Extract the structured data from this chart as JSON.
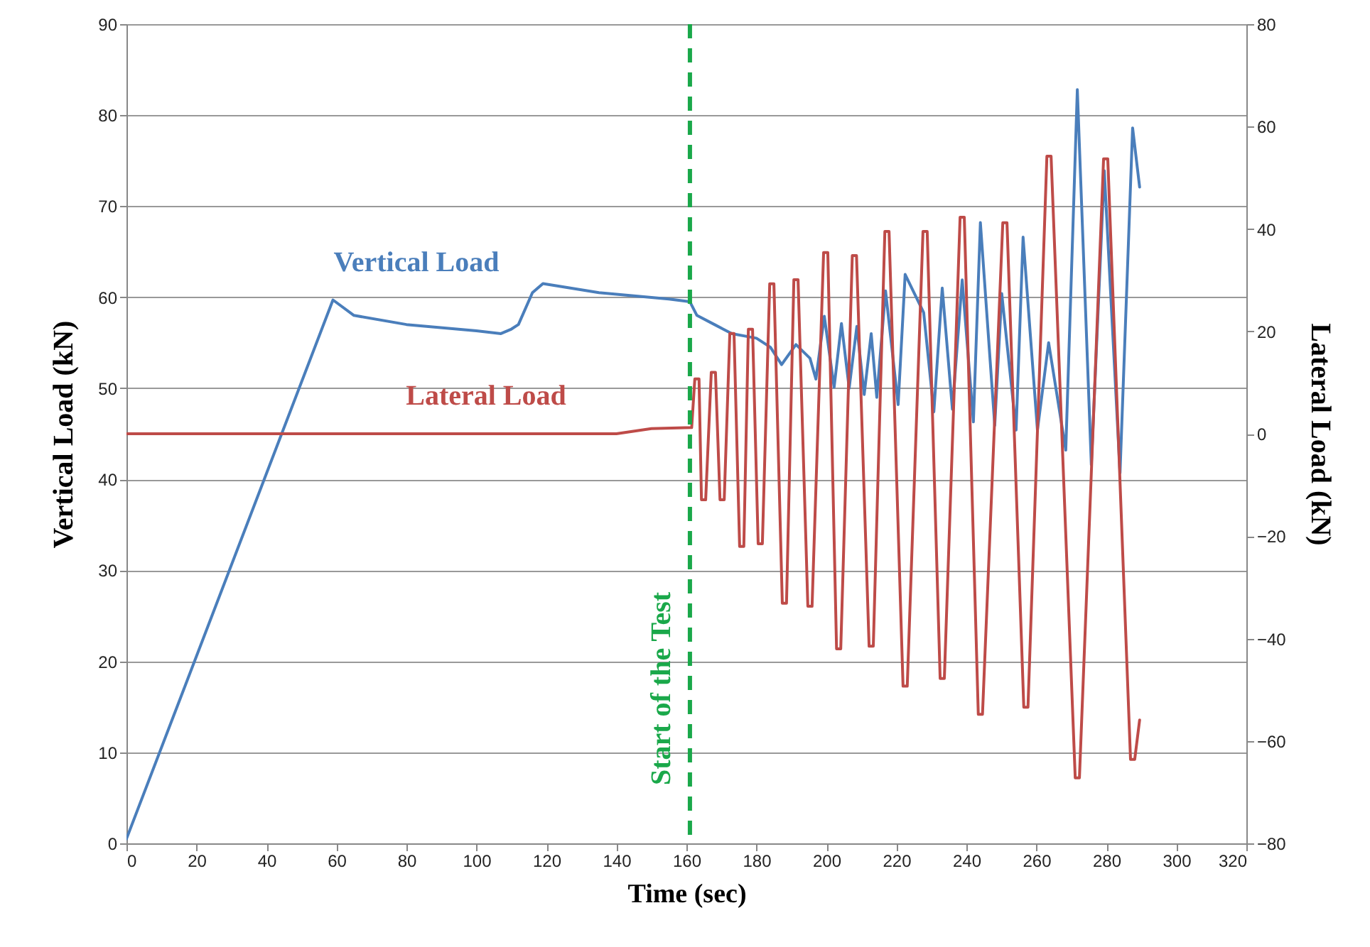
{
  "chart_data": {
    "type": "line",
    "xlabel": "Time (sec)",
    "ylabel": "Vertical  Load (kN)",
    "y2label": "Lateral  Load (kN)",
    "xlim": [
      0,
      320
    ],
    "xticks": [
      0,
      20,
      40,
      60,
      80,
      100,
      120,
      140,
      160,
      180,
      200,
      220,
      240,
      260,
      280,
      300,
      320
    ],
    "ylim": [
      0,
      90
    ],
    "yticks": [
      0,
      10,
      20,
      30,
      40,
      50,
      60,
      70,
      80,
      90
    ],
    "y2lim": [
      -80,
      80
    ],
    "y2ticks": [
      -80,
      -60,
      -40,
      -20,
      0,
      20,
      40,
      60,
      80
    ],
    "grid": "y",
    "line_style": "solid",
    "marker": "none",
    "series": [
      {
        "name": "Vertical Load",
        "color": "#4a7ebb",
        "x": [
          0,
          59,
          65,
          80,
          100,
          107,
          110,
          112,
          116,
          119,
          135,
          155,
          161,
          163,
          168,
          173,
          180,
          184,
          187.2,
          191.3,
          195.3,
          197,
          199.4,
          202.2,
          204.3,
          206.5,
          208.7,
          210.8,
          212.8,
          214.4,
          216.9,
          220.5,
          222.5,
          227.8,
          230.7,
          233.1,
          236,
          238.8,
          242,
          244,
          248.1,
          250.1,
          254.2,
          256.2,
          260.3,
          263.5,
          268.4,
          271.7,
          275.7,
          279.4,
          283.9,
          287.5,
          289.5
        ],
        "values": [
          0.5,
          59.7,
          58,
          57,
          56.3,
          56,
          56.5,
          57,
          60.5,
          61.5,
          60.5,
          59.8,
          59.5,
          58,
          57,
          56,
          55.5,
          54.5,
          52.6,
          54.8,
          53.3,
          51,
          57.9,
          50.1,
          57.1,
          50,
          56.8,
          49.3,
          56,
          49,
          60.7,
          48.2,
          62.5,
          58.3,
          47.4,
          61,
          47.7,
          61.9,
          46.3,
          68.2,
          45.9,
          60.4,
          45.4,
          66.6,
          45.4,
          55,
          43.2,
          82.8,
          41.6,
          73.9,
          40.7,
          78.6,
          72.1
        ]
      },
      {
        "name": "Lateral Load",
        "color": "#be4b48",
        "axis": "y2",
        "x": [
          0,
          140,
          150,
          161.5,
          162.4,
          163.6,
          164.3,
          165.5,
          167.1,
          168.3,
          169.6,
          170.8,
          172.4,
          173.6,
          175.2,
          176.4,
          177.7,
          178.9,
          180.5,
          181.7,
          183.8,
          185,
          187.4,
          188.6,
          190.7,
          191.9,
          194.7,
          195.9,
          199.2,
          200.4,
          202.9,
          204.1,
          207.4,
          208.6,
          212.2,
          213.4,
          216.7,
          217.9,
          221.9,
          223.1,
          227.6,
          228.8,
          232.5,
          233.7,
          238.2,
          239.4,
          243.4,
          244.6,
          250.4,
          251.6,
          256.4,
          257.6,
          263,
          264.2,
          271.1,
          272.3,
          279.2,
          280.4,
          286.9,
          288.1,
          289.5
        ],
        "values": [
          0,
          0,
          1,
          1.2,
          10.7,
          10.7,
          -12.9,
          -12.9,
          12,
          12,
          -12.9,
          -12.9,
          19.6,
          19.6,
          -22,
          -22,
          20.4,
          20.4,
          -21.5,
          -21.5,
          29.3,
          29.3,
          -33.1,
          -33.1,
          30.1,
          30.1,
          -33.7,
          -33.7,
          35.4,
          35.4,
          -42,
          -42,
          34.8,
          34.8,
          -41.5,
          -41.5,
          39.5,
          39.5,
          -49.3,
          -49.3,
          39.5,
          39.5,
          -47.8,
          -47.8,
          42.3,
          42.3,
          -54.8,
          -54.8,
          41.2,
          41.2,
          -53.4,
          -53.4,
          54.2,
          54.2,
          -67.2,
          -67.2,
          53.7,
          53.7,
          -63.6,
          -63.6,
          -55.9
        ]
      }
    ],
    "ref_lines": [
      {
        "axis": "x",
        "value": 161,
        "label": "Start of the Test",
        "color": "#1aa84a",
        "line_style": "dashed"
      }
    ]
  }
}
